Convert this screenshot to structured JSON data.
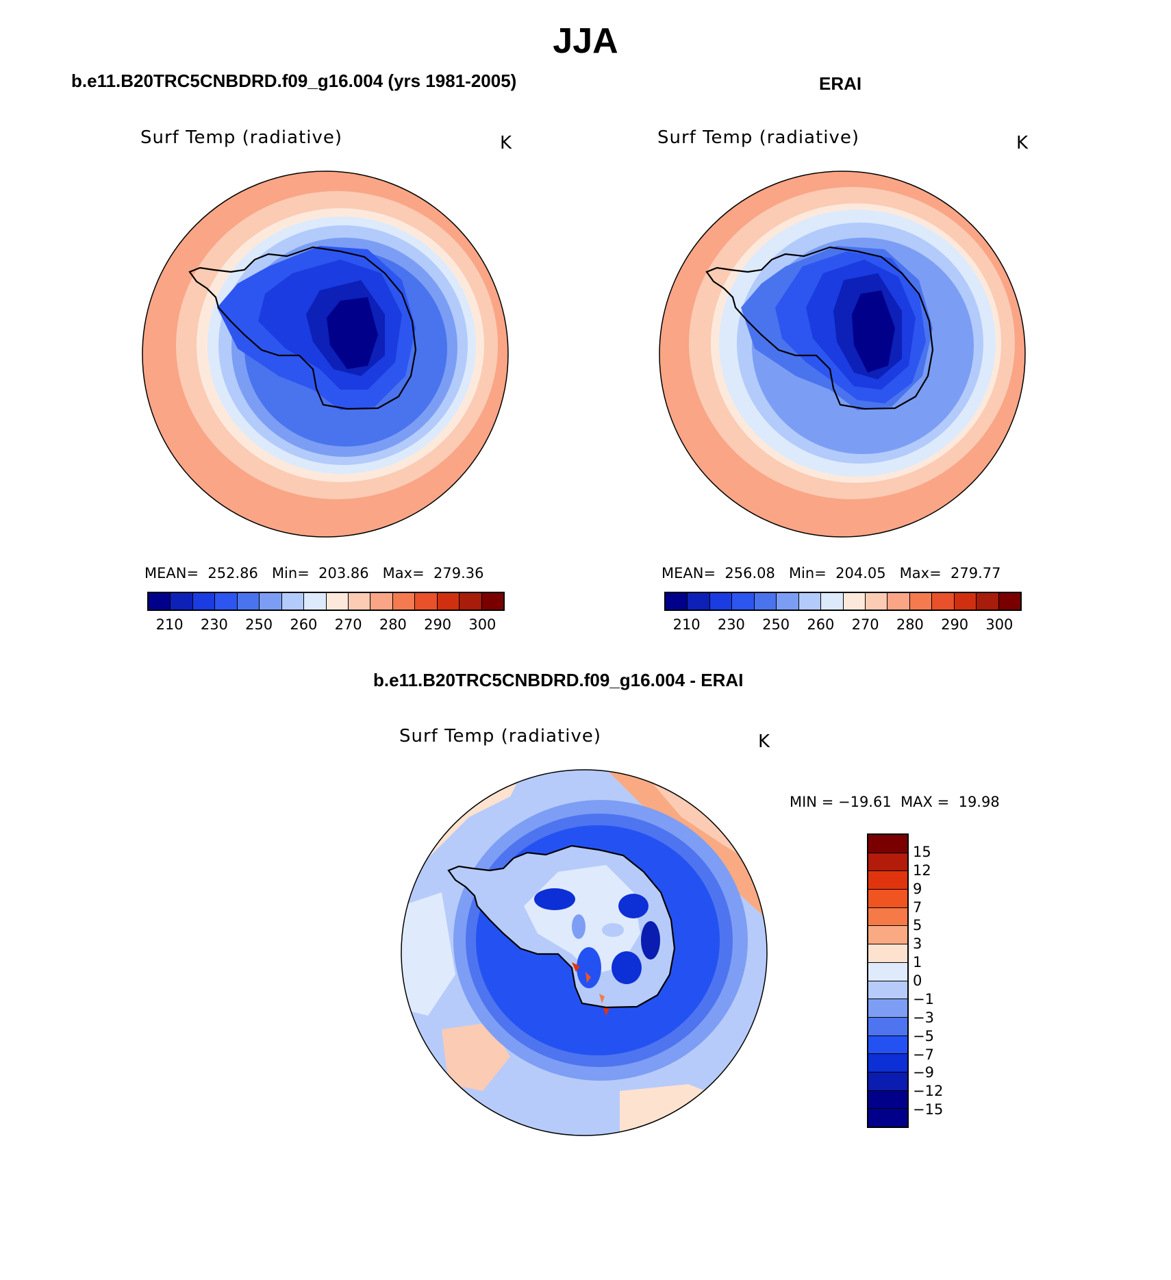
{
  "figure": {
    "title": "JJA"
  },
  "panels": [
    {
      "title": "b.e11.B20TRC5CNBDRD.f09_g16.004 (yrs 1981-2005)",
      "variable": "Surf Temp (radiative)",
      "units": "K",
      "stats": {
        "mean_label": "MEAN=",
        "mean": "252.86",
        "min_label": "Min=",
        "min": "203.86",
        "max_label": "Max=",
        "max": "279.36"
      }
    },
    {
      "title": "ERAI",
      "variable": "Surf Temp (radiative)",
      "units": "K",
      "stats": {
        "mean_label": "MEAN=",
        "mean": "256.08",
        "min_label": "Min=",
        "min": "204.05",
        "max_label": "Max=",
        "max": "279.77"
      }
    },
    {
      "title": "b.e11.B20TRC5CNBDRD.f09_g16.004 - ERAI",
      "variable": "Surf Temp (radiative)",
      "units": "K",
      "stats": {
        "min_label": "MIN =",
        "min": "−19.61",
        "max_label": "MAX =",
        "max": "19.98"
      }
    }
  ],
  "temp_colorbar": {
    "colors": [
      "#00008b",
      "#0d20b8",
      "#1a3ce0",
      "#2d55f0",
      "#4a73ee",
      "#7b9ef4",
      "#b3cbfa",
      "#dceafc",
      "#fde9dc",
      "#fbcbb4",
      "#f9a586",
      "#f47b50",
      "#e8512a",
      "#d03010",
      "#a71c0a",
      "#7a0000"
    ],
    "labels": [
      "210",
      "230",
      "250",
      "260",
      "270",
      "280",
      "290",
      "300"
    ]
  },
  "diff_colorbar": {
    "colors": [
      "#7a0000",
      "#b31b0a",
      "#e0340f",
      "#f05421",
      "#f57a48",
      "#f9aa82",
      "#fde2cf",
      "#dfeafc",
      "#b6cbfa",
      "#7d9ef4",
      "#4e74ef",
      "#2452f2",
      "#0d2fd6",
      "#0a1db0",
      "#00008b"
    ],
    "labels": [
      "15",
      "12",
      "9",
      "7",
      "5",
      "3",
      "1",
      "0",
      "−1",
      "−3",
      "−5",
      "−7",
      "−9",
      "−12",
      "−15"
    ]
  },
  "colors": {
    "ocean_warm": "#f9a586",
    "land_cold": "#00008b",
    "coastline": "#000000"
  }
}
